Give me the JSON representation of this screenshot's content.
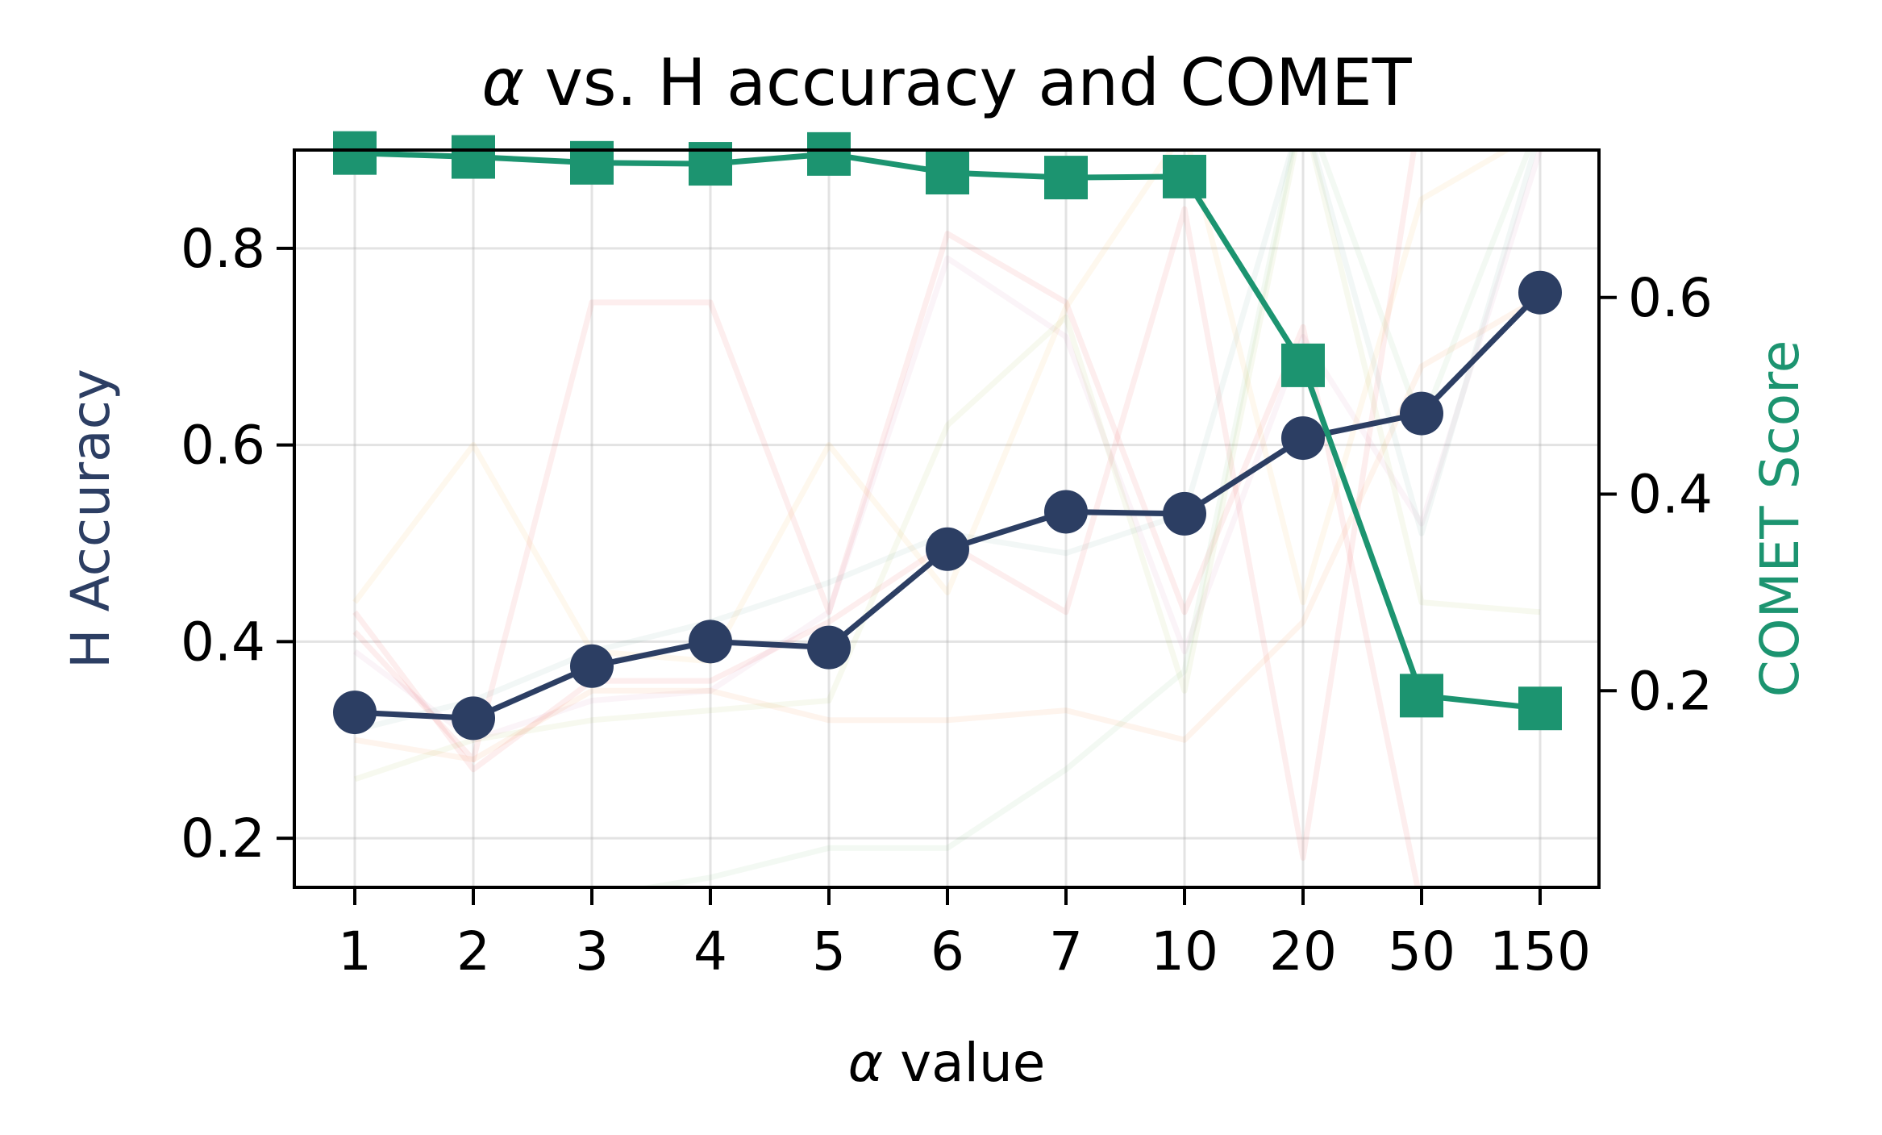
{
  "chart_data": {
    "type": "line",
    "title": {
      "symbol": "α",
      "text": " vs. H accuracy and COMET"
    },
    "xlabel": {
      "symbol": "α",
      "text": " value"
    },
    "ylabel_left": "H Accuracy",
    "ylabel_right": "COMET Score",
    "categories": [
      "1",
      "2",
      "3",
      "4",
      "5",
      "6",
      "7",
      "10",
      "20",
      "50",
      "150"
    ],
    "ylim_left": [
      0.15,
      0.9
    ],
    "ylim_right": [
      0.0,
      0.75
    ],
    "yticks_left": [
      0.2,
      0.4,
      0.6,
      0.8
    ],
    "yticks_left_labels": [
      "0.2",
      "0.4",
      "0.6",
      "0.8"
    ],
    "yticks_right": [
      0.2,
      0.4,
      0.6
    ],
    "yticks_right_labels": [
      "0.2",
      "0.4",
      "0.6"
    ],
    "grid": true,
    "series": [
      {
        "axis": "left",
        "color": "#2c3e63",
        "marker": "circle",
        "values": [
          0.328,
          0.322,
          0.375,
          0.4,
          0.394,
          0.494,
          0.532,
          0.53,
          0.607,
          0.632,
          0.755
        ]
      },
      {
        "axis": "right",
        "color": "#1c9470",
        "marker": "square",
        "values": [
          0.747,
          0.743,
          0.737,
          0.736,
          0.746,
          0.727,
          0.722,
          0.723,
          0.531,
          0.195,
          0.182
        ]
      }
    ],
    "background_series": [
      {
        "color": "#e9463d",
        "values": [
          0.41,
          0.28,
          0.745,
          0.745,
          0.43,
          0.815,
          0.745,
          0.43,
          0.72,
          0.13,
          null
        ]
      },
      {
        "color": "#e9463d",
        "values": [
          0.43,
          0.27,
          0.36,
          0.36,
          0.42,
          0.5,
          0.43,
          0.84,
          0.18,
          0.95,
          null
        ]
      },
      {
        "color": "#d680b5",
        "values": [
          0.39,
          0.3,
          0.34,
          0.35,
          0.43,
          0.79,
          0.71,
          0.39,
          0.71,
          0.52,
          0.9
        ]
      },
      {
        "color": "#f5b640",
        "values": [
          0.44,
          0.6,
          0.39,
          0.38,
          0.6,
          0.45,
          0.74,
          0.92,
          0.44,
          0.85,
          0.92
        ]
      },
      {
        "color": "#ef8632",
        "values": [
          0.3,
          0.28,
          0.35,
          0.35,
          0.32,
          0.32,
          0.33,
          0.3,
          0.42,
          0.68,
          0.75
        ]
      },
      {
        "color": "#a4bc4b",
        "values": [
          0.26,
          0.3,
          0.32,
          0.33,
          0.34,
          0.62,
          0.73,
          0.35,
          0.94,
          0.44,
          0.43
        ]
      },
      {
        "color": "#7cc275",
        "values": [
          0.13,
          0.13,
          0.14,
          0.16,
          0.19,
          0.19,
          0.27,
          0.37,
          0.95,
          0.62,
          0.93
        ]
      },
      {
        "color": "#6fa3a0",
        "values": [
          0.31,
          0.34,
          0.39,
          0.42,
          0.46,
          0.51,
          0.49,
          0.53,
          0.94,
          0.51,
          0.92
        ]
      }
    ]
  }
}
